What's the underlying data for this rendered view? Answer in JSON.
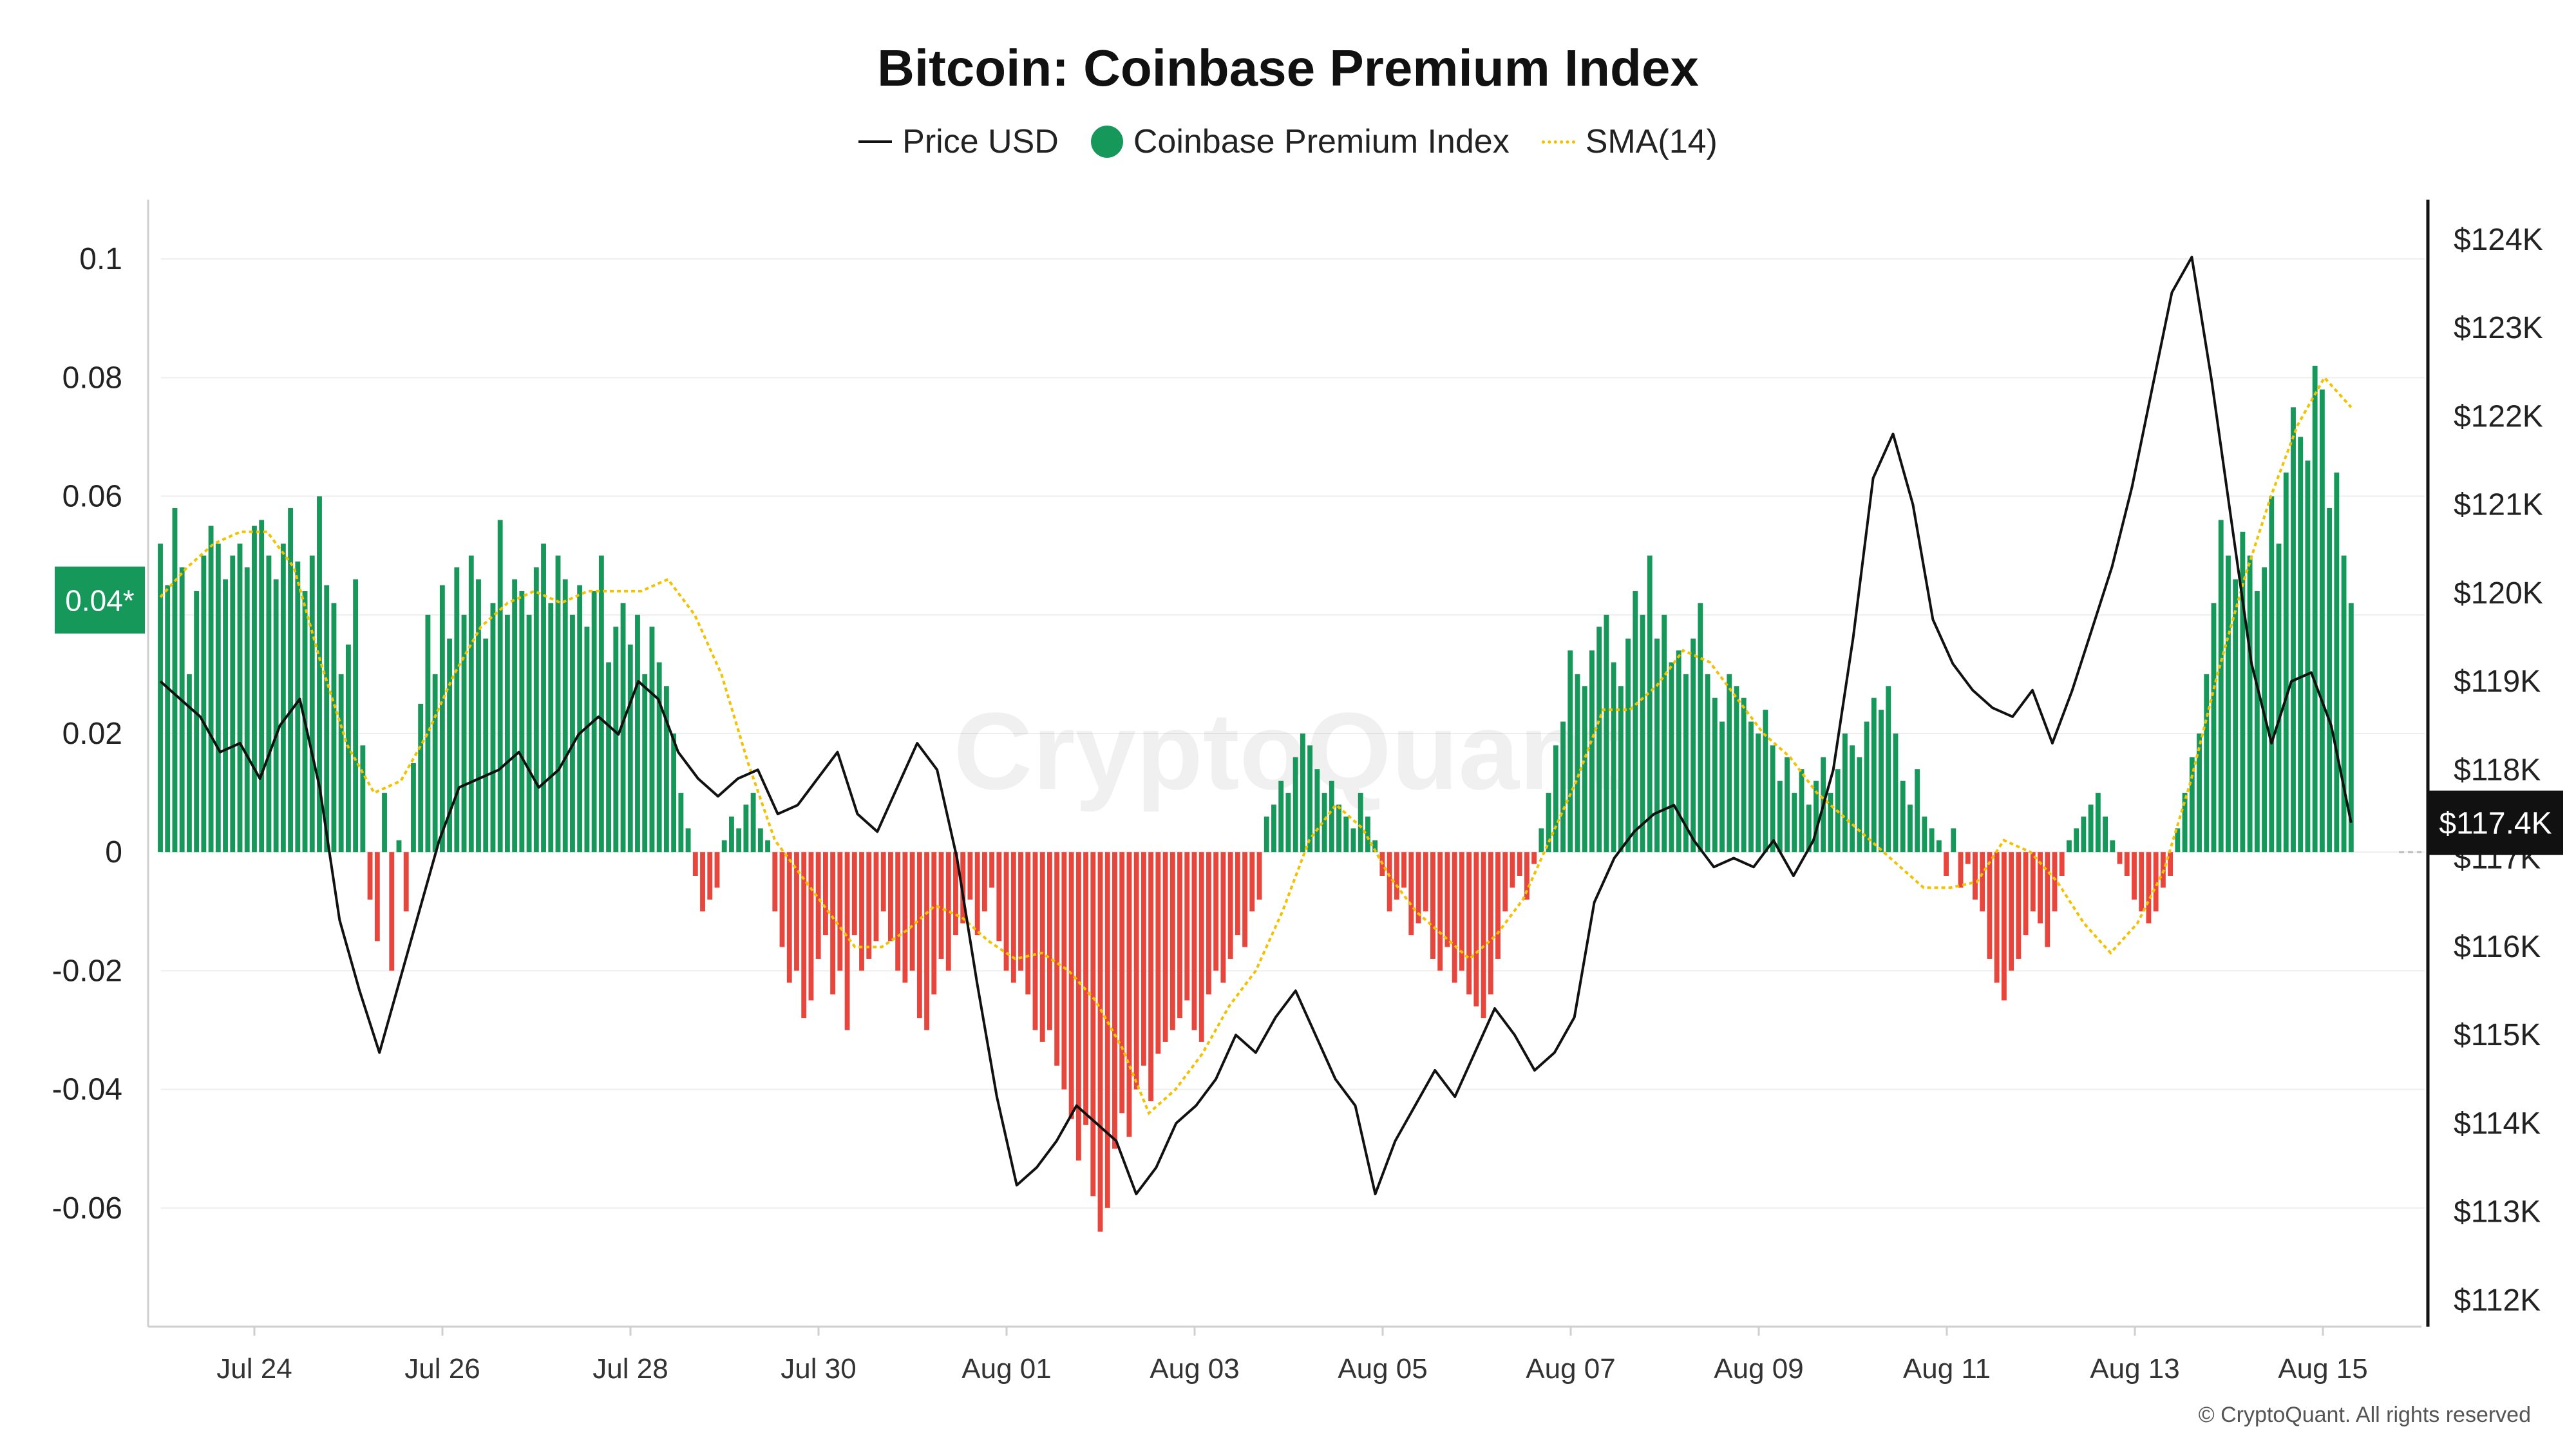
{
  "title": "Bitcoin: Coinbase Premium Index",
  "legend": {
    "price": "Price USD",
    "premium": "Coinbase Premium Index",
    "sma": "SMA(14)"
  },
  "copyright": "© CryptoQuant. All rights reserved",
  "watermark": "CryptoQuant",
  "colors": {
    "positive": "#16985b",
    "negative": "#e8453c",
    "price": "#111111",
    "sma": "#f2c200",
    "grid": "#eeeeee"
  },
  "chart_data": {
    "type": "bar",
    "title": "Bitcoin: Coinbase Premium Index",
    "x_ticks": [
      "Jul 24",
      "Jul 26",
      "Jul 28",
      "Jul 30",
      "Aug 01",
      "Aug 03",
      "Aug 05",
      "Aug 07",
      "Aug 09",
      "Aug 11",
      "Aug 13",
      "Aug 15"
    ],
    "left_axis": {
      "range": [
        -0.08,
        0.11
      ],
      "ticks": [
        0.1,
        0.08,
        0.06,
        0.04,
        0.02,
        0,
        -0.02,
        -0.04,
        -0.06
      ],
      "tick_labels": [
        "0.1",
        "0.08",
        "0.06",
        "0.04",
        "0.02",
        "0",
        "-0.02",
        "-0.04",
        "-0.06"
      ]
    },
    "right_axis": {
      "range": [
        111700,
        124450
      ],
      "ticks": [
        124000,
        123000,
        122000,
        121000,
        120000,
        119000,
        118000,
        117000,
        116000,
        115000,
        114000,
        113000,
        112000
      ],
      "tick_labels": [
        "$124K",
        "$123K",
        "$122K",
        "$121K",
        "$120K",
        "$119K",
        "$118K",
        "$117K",
        "$116K",
        "$115K",
        "$114K",
        "$113K",
        "$112K"
      ]
    },
    "current_premium_label": "0.04*",
    "current_price_label": "$117.4K",
    "series": [
      {
        "name": "Coinbase Premium Index",
        "kind": "bar",
        "day_offset_start": -1,
        "values": [
          0.052,
          0.045,
          0.058,
          0.048,
          0.03,
          0.044,
          0.05,
          0.055,
          0.052,
          0.046,
          0.05,
          0.052,
          0.048,
          0.055,
          0.056,
          0.05,
          0.046,
          0.052,
          0.058,
          0.049,
          0.044,
          0.05,
          0.06,
          0.045,
          0.042,
          0.03,
          0.035,
          0.046,
          0.018,
          -0.008,
          -0.015,
          0.01,
          -0.02,
          0.002,
          -0.01,
          0.015,
          0.025,
          0.04,
          0.03,
          0.045,
          0.036,
          0.048,
          0.04,
          0.05,
          0.046,
          0.036,
          0.042,
          0.056,
          0.04,
          0.046,
          0.044,
          0.04,
          0.048,
          0.052,
          0.042,
          0.05,
          0.046,
          0.04,
          0.045,
          0.038,
          0.044,
          0.05,
          0.032,
          0.038,
          0.042,
          0.035,
          0.04,
          0.03,
          0.038,
          0.032,
          0.028,
          0.02,
          0.01,
          0.004,
          -0.004,
          -0.01,
          -0.008,
          -0.006,
          0.002,
          0.006,
          0.004,
          0.008,
          0.01,
          0.004,
          0.002,
          -0.01,
          -0.016,
          -0.022,
          -0.02,
          -0.028,
          -0.025,
          -0.018,
          -0.014,
          -0.024,
          -0.02,
          -0.03,
          -0.014,
          -0.02,
          -0.018,
          -0.015,
          -0.01,
          -0.015,
          -0.02,
          -0.022,
          -0.02,
          -0.028,
          -0.03,
          -0.024,
          -0.018,
          -0.02,
          -0.014,
          -0.012,
          -0.008,
          -0.014,
          -0.01,
          -0.006,
          -0.015,
          -0.02,
          -0.022,
          -0.02,
          -0.024,
          -0.03,
          -0.032,
          -0.03,
          -0.036,
          -0.04,
          -0.045,
          -0.052,
          -0.046,
          -0.058,
          -0.064,
          -0.06,
          -0.05,
          -0.044,
          -0.048,
          -0.04,
          -0.036,
          -0.042,
          -0.034,
          -0.032,
          -0.03,
          -0.028,
          -0.025,
          -0.03,
          -0.032,
          -0.024,
          -0.02,
          -0.022,
          -0.018,
          -0.014,
          -0.016,
          -0.01,
          -0.008,
          0.006,
          0.008,
          0.012,
          0.01,
          0.016,
          0.02,
          0.018,
          0.014,
          0.01,
          0.012,
          0.008,
          0.006,
          0.004,
          0.01,
          0.006,
          0.002,
          -0.004,
          -0.01,
          -0.008,
          -0.006,
          -0.014,
          -0.012,
          -0.01,
          -0.018,
          -0.02,
          -0.016,
          -0.022,
          -0.02,
          -0.024,
          -0.026,
          -0.028,
          -0.024,
          -0.018,
          -0.01,
          -0.006,
          -0.004,
          -0.008,
          -0.002,
          0.004,
          0.01,
          0.018,
          0.022,
          0.034,
          0.03,
          0.028,
          0.034,
          0.038,
          0.04,
          0.032,
          0.028,
          0.036,
          0.044,
          0.04,
          0.05,
          0.036,
          0.04,
          0.032,
          0.034,
          0.03,
          0.036,
          0.042,
          0.03,
          0.026,
          0.022,
          0.03,
          0.028,
          0.026,
          0.022,
          0.02,
          0.024,
          0.018,
          0.012,
          0.016,
          0.01,
          0.014,
          0.008,
          0.012,
          0.016,
          0.01,
          0.014,
          0.02,
          0.018,
          0.016,
          0.022,
          0.026,
          0.024,
          0.028,
          0.02,
          0.012,
          0.008,
          0.014,
          0.006,
          0.004,
          0.002,
          -0.004,
          0.004,
          -0.006,
          -0.002,
          -0.008,
          -0.01,
          -0.018,
          -0.022,
          -0.025,
          -0.02,
          -0.018,
          -0.014,
          -0.01,
          -0.012,
          -0.016,
          -0.01,
          -0.004,
          0.002,
          0.004,
          0.006,
          0.008,
          0.01,
          0.006,
          0.002,
          -0.002,
          -0.004,
          -0.008,
          -0.01,
          -0.012,
          -0.01,
          -0.006,
          -0.004,
          0.004,
          0.01,
          0.016,
          0.02,
          0.03,
          0.042,
          0.056,
          0.05,
          0.046,
          0.054,
          0.05,
          0.044,
          0.048,
          0.06,
          0.052,
          0.064,
          0.075,
          0.07,
          0.066,
          0.082,
          0.078,
          0.058,
          0.064,
          0.05,
          0.042
        ]
      },
      {
        "name": "SMA(14)",
        "kind": "line",
        "day_offset_start": -1,
        "values": [
          0.043,
          0.048,
          0.052,
          0.054,
          0.054,
          0.048,
          0.032,
          0.018,
          0.01,
          0.012,
          0.02,
          0.03,
          0.038,
          0.042,
          0.044,
          0.042,
          0.044,
          0.044,
          0.044,
          0.046,
          0.04,
          0.03,
          0.015,
          0.002,
          -0.004,
          -0.01,
          -0.016,
          -0.016,
          -0.013,
          -0.009,
          -0.011,
          -0.015,
          -0.018,
          -0.017,
          -0.02,
          -0.025,
          -0.033,
          -0.044,
          -0.04,
          -0.034,
          -0.026,
          -0.02,
          -0.01,
          0.002,
          0.008,
          0.004,
          -0.004,
          -0.01,
          -0.014,
          -0.018,
          -0.014,
          -0.008,
          0.002,
          0.012,
          0.024,
          0.024,
          0.028,
          0.034,
          0.032,
          0.026,
          0.02,
          0.016,
          0.01,
          0.006,
          0.002,
          -0.002,
          -0.006,
          -0.006,
          -0.005,
          0.002,
          0.0,
          -0.005,
          -0.012,
          -0.017,
          -0.012,
          -0.003,
          0.012,
          0.03,
          0.046,
          0.06,
          0.072,
          0.08,
          0.075
        ]
      },
      {
        "name": "Price USD",
        "kind": "line",
        "day_offset_start": -1,
        "values": [
          119000,
          118800,
          118600,
          118200,
          118300,
          117900,
          118500,
          118800,
          117800,
          116300,
          115500,
          114800,
          115600,
          116400,
          117200,
          117800,
          117900,
          118000,
          118200,
          117800,
          118000,
          118400,
          118600,
          118400,
          119000,
          118800,
          118200,
          117900,
          117700,
          117900,
          118000,
          117500,
          117600,
          117900,
          118200,
          117500,
          117300,
          117800,
          118300,
          118000,
          117000,
          115600,
          114300,
          113300,
          113500,
          113800,
          114200,
          114000,
          113800,
          113200,
          113500,
          114000,
          114200,
          114500,
          115000,
          114800,
          115200,
          115500,
          115000,
          114500,
          114200,
          113200,
          113800,
          114200,
          114600,
          114300,
          114800,
          115300,
          115000,
          114600,
          114800,
          115200,
          116500,
          117000,
          117300,
          117500,
          117600,
          117200,
          116900,
          117000,
          116900,
          117200,
          116800,
          117200,
          118000,
          119500,
          121300,
          121800,
          121000,
          119700,
          119200,
          118900,
          118700,
          118600,
          118900,
          118300,
          118900,
          119600,
          120300,
          121200,
          122300,
          123400,
          123800,
          122400,
          120800,
          119200,
          118300,
          119000,
          119100,
          118500,
          117400
        ]
      }
    ]
  }
}
